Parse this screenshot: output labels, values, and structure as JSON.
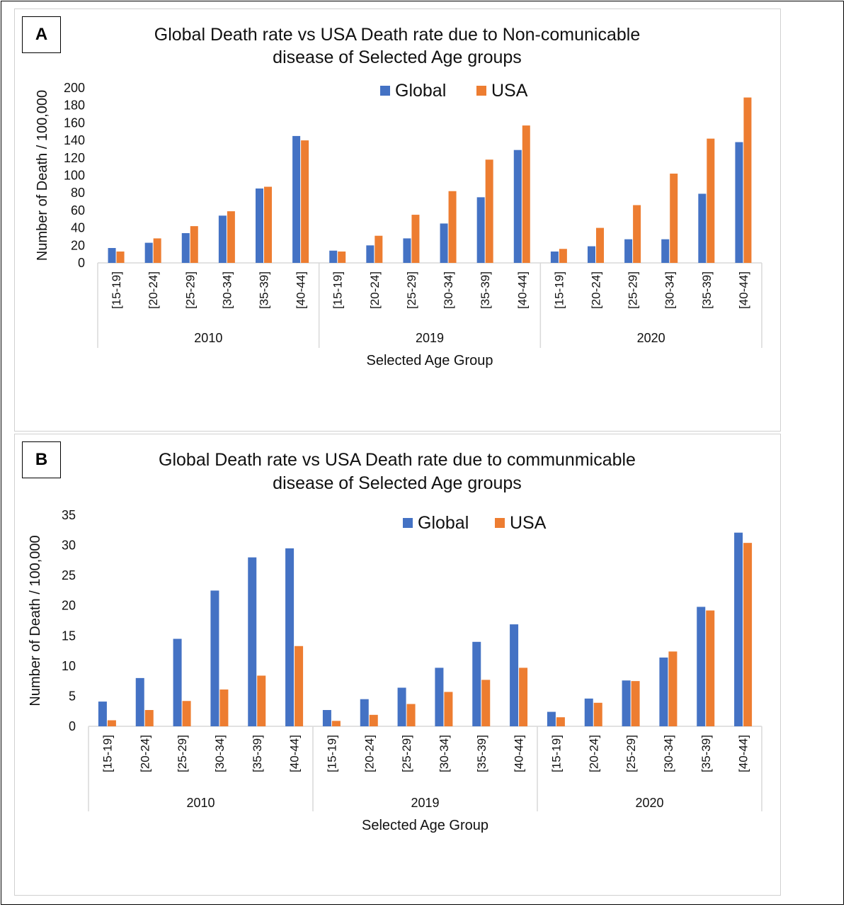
{
  "colors": {
    "global": "#4472C4",
    "usa": "#ED7D31",
    "axis": "#d9d9d9"
  },
  "chart_data": [
    {
      "panel_label": "A",
      "type": "bar",
      "title": "Global Death rate vs USA Death rate due to Non-comunicable disease of Selected Age groups",
      "title_lines": [
        "Global Death rate vs USA Death rate due to Non-comunicable",
        "disease of Selected Age groups"
      ],
      "xlabel": "Selected Age Group",
      "ylabel": "Number of Death / 100,000",
      "ylim": [
        0,
        200
      ],
      "yticks": [
        0,
        20,
        40,
        60,
        80,
        100,
        120,
        140,
        160,
        180,
        200
      ],
      "groups": [
        "2010",
        "2019",
        "2020"
      ],
      "categories": [
        "[15-19]",
        "[20-24]",
        "[25-29]",
        "[30-34]",
        "[35-39]",
        "[40-44]"
      ],
      "legend": "top",
      "series": [
        {
          "name": "Global",
          "values": [
            [
              17,
              23,
              34,
              54,
              85,
              145
            ],
            [
              14,
              20,
              28,
              45,
              75,
              129
            ],
            [
              13,
              19,
              27,
              27,
              79,
              138
            ]
          ]
        },
        {
          "name": "USA",
          "values": [
            [
              13,
              28,
              42,
              59,
              87,
              140
            ],
            [
              13,
              31,
              55,
              82,
              118,
              157
            ],
            [
              16,
              40,
              66,
              102,
              142,
              189
            ]
          ]
        }
      ]
    },
    {
      "panel_label": "B",
      "type": "bar",
      "title": "Global Death rate vs USA Death rate due to communmicable disease of Selected Age groups",
      "title_lines": [
        "Global Death rate vs USA Death rate due to communmicable",
        "disease of Selected Age groups"
      ],
      "xlabel": "Selected Age Group",
      "ylabel": "Number of Death / 100,000",
      "ylim": [
        0,
        35
      ],
      "yticks": [
        0,
        5,
        10,
        15,
        20,
        25,
        30,
        35
      ],
      "groups": [
        "2010",
        "2019",
        "2020"
      ],
      "categories": [
        "[15-19]",
        "[20-24]",
        "[25-29]",
        "[30-34]",
        "[35-39]",
        "[40-44]"
      ],
      "legend": "top",
      "series": [
        {
          "name": "Global",
          "values": [
            [
              4.1,
              8.0,
              14.5,
              22.5,
              28.0,
              29.5
            ],
            [
              2.7,
              4.5,
              6.4,
              9.7,
              14.0,
              16.9
            ],
            [
              2.4,
              4.6,
              7.6,
              11.4,
              19.8,
              32.1
            ]
          ]
        },
        {
          "name": "USA",
          "values": [
            [
              1.0,
              2.7,
              4.2,
              6.1,
              8.4,
              13.3
            ],
            [
              0.9,
              1.9,
              3.7,
              5.7,
              7.7,
              9.7
            ],
            [
              1.5,
              3.9,
              7.5,
              12.4,
              19.2,
              30.4
            ]
          ]
        }
      ]
    }
  ]
}
